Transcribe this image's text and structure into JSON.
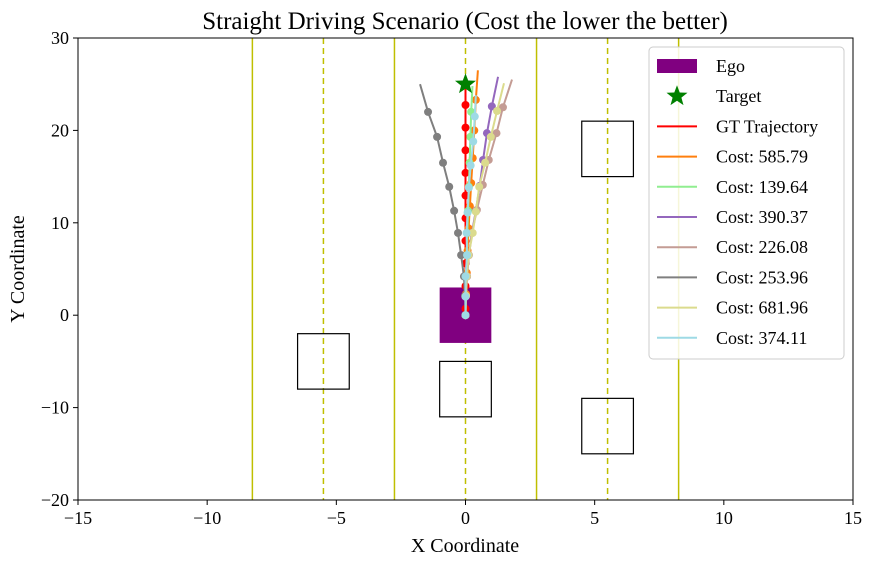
{
  "chart_data": {
    "type": "line",
    "title": "Straight Driving Scenario (Cost the lower the better)",
    "xlabel": "X Coordinate",
    "ylabel": "Y Coordinate",
    "xlim": [
      -15,
      15
    ],
    "ylim": [
      -20,
      30
    ],
    "xticks": [
      -15,
      -10,
      -5,
      0,
      5,
      10,
      15
    ],
    "yticks": [
      -20,
      -10,
      0,
      10,
      20,
      30
    ],
    "xtick_labels": [
      "−15",
      "−10",
      "−5",
      "0",
      "5",
      "10",
      "15"
    ],
    "ytick_labels": [
      "−20",
      "−10",
      "0",
      "10",
      "20",
      "30"
    ],
    "grid": false,
    "legend_position": "top-right",
    "lanes": {
      "solid": [
        -8.25,
        -2.75,
        2.75,
        8.25
      ],
      "dashed": [
        -5.5,
        0,
        5.5
      ],
      "color": "#bfbf00"
    },
    "ego": {
      "label": "Ego",
      "x": [
        -1,
        1
      ],
      "y": [
        -3,
        3
      ],
      "color": "#800080"
    },
    "target": {
      "label": "Target",
      "x": 0,
      "y": 25,
      "color": "#008000"
    },
    "obstacles": [
      {
        "x": [
          -6.5,
          -4.5
        ],
        "y": [
          -8,
          -2
        ]
      },
      {
        "x": [
          -1,
          1
        ],
        "y": [
          -11,
          -5
        ]
      },
      {
        "x": [
          4.5,
          6.5
        ],
        "y": [
          -15,
          -9
        ]
      },
      {
        "x": [
          4.5,
          6.5
        ],
        "y": [
          15,
          21
        ]
      }
    ],
    "series": [
      {
        "name": "GT Trajectory",
        "color": "#ff0000",
        "x": [
          0,
          0,
          0,
          0,
          0,
          0,
          0,
          0,
          0,
          0,
          0
        ],
        "y": [
          0.7,
          3.15,
          5.6,
          8.05,
          10.5,
          12.95,
          15.4,
          17.85,
          20.3,
          22.75,
          25
        ],
        "end": [
          0,
          25
        ]
      },
      {
        "name": "Cost: 585.79",
        "color": "#ff7f0e",
        "x": [
          0,
          0.02,
          0.05,
          0.08,
          0.12,
          0.17,
          0.22,
          0.28,
          0.34,
          0.4
        ],
        "y": [
          0,
          2.3,
          4.6,
          7,
          9.4,
          11.8,
          14.3,
          17,
          20,
          23.3
        ],
        "end": [
          0.48,
          26.5
        ]
      },
      {
        "name": "Cost: 139.64",
        "color": "#90ee90",
        "x": [
          0,
          0.01,
          0.03,
          0.05,
          0.07,
          0.1,
          0.13,
          0.16,
          0.19,
          0.22
        ],
        "y": [
          0,
          2.1,
          4.2,
          6.5,
          8.9,
          11.3,
          13.9,
          16.5,
          19.3,
          22
        ],
        "end": [
          0.27,
          24.8
        ]
      },
      {
        "name": "Cost: 390.37",
        "color": "#9467bd",
        "x": [
          0,
          0.02,
          0.06,
          0.13,
          0.25,
          0.4,
          0.55,
          0.68,
          0.83,
          1.02
        ],
        "y": [
          0,
          2.1,
          4.2,
          6.5,
          8.9,
          11.3,
          14,
          16.8,
          19.7,
          22.6
        ],
        "end": [
          1.26,
          25.8
        ]
      },
      {
        "name": "Cost: 226.08",
        "color": "#c49c94",
        "x": [
          0,
          0.02,
          0.06,
          0.13,
          0.25,
          0.44,
          0.67,
          0.9,
          1.2,
          1.45
        ],
        "y": [
          0,
          2.1,
          4.2,
          6.5,
          8.9,
          11.4,
          14.1,
          16.8,
          19.7,
          22.5
        ],
        "end": [
          1.8,
          25.5
        ]
      },
      {
        "name": "Cost: 253.96",
        "color": "#7f7f7f",
        "x": [
          0,
          -0.02,
          -0.06,
          -0.17,
          -0.29,
          -0.44,
          -0.63,
          -0.87,
          -1.1,
          -1.45
        ],
        "y": [
          0,
          2.1,
          4.2,
          6.5,
          8.9,
          11.3,
          13.9,
          16.5,
          19.3,
          22
        ],
        "end": [
          -1.76,
          25
        ]
      },
      {
        "name": "Cost: 681.96",
        "color": "#dbdb8d",
        "x": [
          0,
          0.02,
          0.05,
          0.12,
          0.28,
          0.4,
          0.53,
          0.76,
          0.98,
          1.22
        ],
        "y": [
          0,
          2.1,
          4.2,
          6.5,
          8.9,
          11.2,
          13.9,
          16.5,
          19.3,
          22.1
        ],
        "end": [
          1.49,
          25.1
        ]
      },
      {
        "name": "Cost: 374.11",
        "color": "#9edae5",
        "x": [
          0,
          0,
          0,
          0.06,
          0.04,
          0.08,
          0.13,
          0.2,
          0.3,
          0.36
        ],
        "y": [
          0,
          2,
          4.2,
          6.5,
          8.9,
          11.1,
          13.8,
          16.2,
          18.8,
          21.5
        ],
        "end": [
          0.4,
          23.8
        ]
      }
    ]
  }
}
